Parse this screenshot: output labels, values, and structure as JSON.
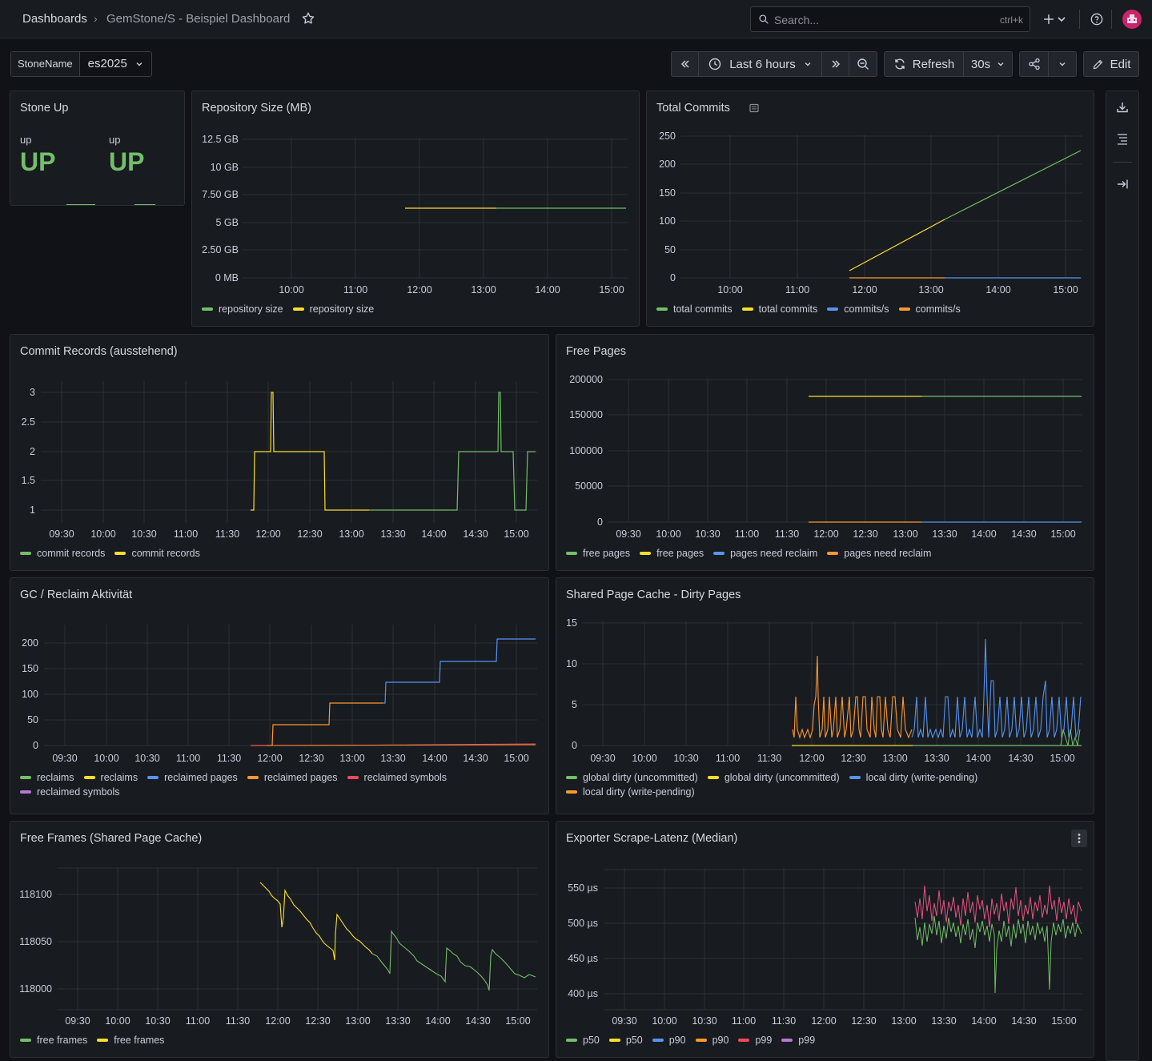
{
  "header": {
    "breadcrumb_root": "Dashboards",
    "breadcrumb_separator": "›",
    "breadcrumb_current": "GemStone/S - Beispiel Dashboard",
    "search_placeholder": "Search...",
    "search_shortcut": "ctrl+k",
    "icons": [
      "star-icon",
      "search-icon",
      "plus-icon",
      "chevron-down-icon",
      "help-icon",
      "avatar"
    ]
  },
  "controls": {
    "variable_label": "StoneName",
    "variable_value": "es2025",
    "time_range": "Last 6 hours",
    "refresh_label": "Refresh",
    "refresh_interval": "30s",
    "edit_label": "Edit"
  },
  "colors": {
    "green": "#73bf69",
    "yellow": "#fade2a",
    "blue": "#5794f2",
    "orange": "#ff9830",
    "red": "#f2495c",
    "purple": "#b877d9",
    "pink": "#e55582"
  },
  "panels": {
    "stone_up": {
      "title": "Stone Up",
      "label_1": "up",
      "value_1": "UP",
      "label_2": "up",
      "value_2": "UP"
    },
    "repo_size": {
      "title": "Repository Size (MB)",
      "y_ticks": [
        "12.5 GB",
        "10 GB",
        "7.50 GB",
        "5 GB",
        "2.50 GB",
        "0 MB"
      ],
      "x_ticks": [
        "10:00",
        "11:00",
        "12:00",
        "13:00",
        "14:00",
        "15:00"
      ],
      "legend": [
        {
          "label": "repository size",
          "color": "#73bf69"
        },
        {
          "label": "repository size",
          "color": "#fade2a"
        }
      ]
    },
    "total_commits": {
      "title": "Total Commits",
      "y_ticks": [
        "250",
        "200",
        "150",
        "100",
        "50",
        "0"
      ],
      "x_ticks": [
        "10:00",
        "11:00",
        "12:00",
        "13:00",
        "14:00",
        "15:00"
      ],
      "legend": [
        {
          "label": "total commits",
          "color": "#73bf69"
        },
        {
          "label": "total commits",
          "color": "#fade2a"
        },
        {
          "label": "commits/s",
          "color": "#5794f2"
        },
        {
          "label": "commits/s",
          "color": "#ff9830"
        }
      ]
    },
    "commit_records": {
      "title": "Commit Records (ausstehend)",
      "y_ticks": [
        "3",
        "2.5",
        "2",
        "1.5",
        "1"
      ],
      "x_ticks": [
        "09:30",
        "10:00",
        "10:30",
        "11:00",
        "11:30",
        "12:00",
        "12:30",
        "13:00",
        "13:30",
        "14:00",
        "14:30",
        "15:00"
      ],
      "legend": [
        {
          "label": "commit records",
          "color": "#73bf69"
        },
        {
          "label": "commit records",
          "color": "#fade2a"
        }
      ]
    },
    "free_pages": {
      "title": "Free Pages",
      "y_ticks": [
        "200000",
        "150000",
        "100000",
        "50000",
        "0"
      ],
      "x_ticks": [
        "09:30",
        "10:00",
        "10:30",
        "11:00",
        "11:30",
        "12:00",
        "12:30",
        "13:00",
        "13:30",
        "14:00",
        "14:30",
        "15:00"
      ],
      "legend": [
        {
          "label": "free pages",
          "color": "#73bf69"
        },
        {
          "label": "free pages",
          "color": "#fade2a"
        },
        {
          "label": "pages need reclaim",
          "color": "#5794f2"
        },
        {
          "label": "pages need reclaim",
          "color": "#ff9830"
        }
      ]
    },
    "gc_reclaim": {
      "title": "GC / Reclaim Aktivität",
      "y_ticks": [
        "200",
        "150",
        "100",
        "50",
        "0"
      ],
      "x_ticks": [
        "09:30",
        "10:00",
        "10:30",
        "11:00",
        "11:30",
        "12:00",
        "12:30",
        "13:00",
        "13:30",
        "14:00",
        "14:30",
        "15:00"
      ],
      "legend": [
        {
          "label": "reclaims",
          "color": "#73bf69"
        },
        {
          "label": "reclaims",
          "color": "#fade2a"
        },
        {
          "label": "reclaimed pages",
          "color": "#5794f2"
        },
        {
          "label": "reclaimed pages",
          "color": "#ff9830"
        },
        {
          "label": "reclaimed symbols",
          "color": "#f2495c"
        },
        {
          "label": "reclaimed symbols",
          "color": "#b877d9"
        }
      ]
    },
    "dirty_pages": {
      "title": "Shared Page Cache - Dirty Pages",
      "y_ticks": [
        "15",
        "10",
        "5",
        "0"
      ],
      "x_ticks": [
        "09:30",
        "10:00",
        "10:30",
        "11:00",
        "11:30",
        "12:00",
        "12:30",
        "13:00",
        "13:30",
        "14:00",
        "14:30",
        "15:00"
      ],
      "legend": [
        {
          "label": "global dirty (uncommitted)",
          "color": "#73bf69"
        },
        {
          "label": "global dirty (uncommitted)",
          "color": "#fade2a"
        },
        {
          "label": "local dirty (write-pending)",
          "color": "#5794f2"
        },
        {
          "label": "local dirty (write-pending)",
          "color": "#ff9830"
        }
      ]
    },
    "free_frames": {
      "title": "Free Frames (Shared Page Cache)",
      "y_ticks": [
        "118100",
        "118050",
        "118000"
      ],
      "x_ticks": [
        "09:30",
        "10:00",
        "10:30",
        "11:00",
        "11:30",
        "12:00",
        "12:30",
        "13:00",
        "13:30",
        "14:00",
        "14:30",
        "15:00"
      ],
      "legend": [
        {
          "label": "free frames",
          "color": "#73bf69"
        },
        {
          "label": "free frames",
          "color": "#fade2a"
        }
      ]
    },
    "scrape_latency": {
      "title": "Exporter Scrape-Latenz (Median)",
      "y_ticks": [
        "550 µs",
        "500 µs",
        "450 µs",
        "400 µs"
      ],
      "x_ticks": [
        "09:30",
        "10:00",
        "10:30",
        "11:00",
        "11:30",
        "12:00",
        "12:30",
        "13:00",
        "13:30",
        "14:00",
        "14:30",
        "15:00"
      ],
      "legend": [
        {
          "label": "p50",
          "color": "#73bf69"
        },
        {
          "label": "p50",
          "color": "#fade2a"
        },
        {
          "label": "p90",
          "color": "#5794f2"
        },
        {
          "label": "p90",
          "color": "#ff9830"
        },
        {
          "label": "p99",
          "color": "#f2495c"
        },
        {
          "label": "p99",
          "color": "#b877d9"
        }
      ]
    }
  }
}
